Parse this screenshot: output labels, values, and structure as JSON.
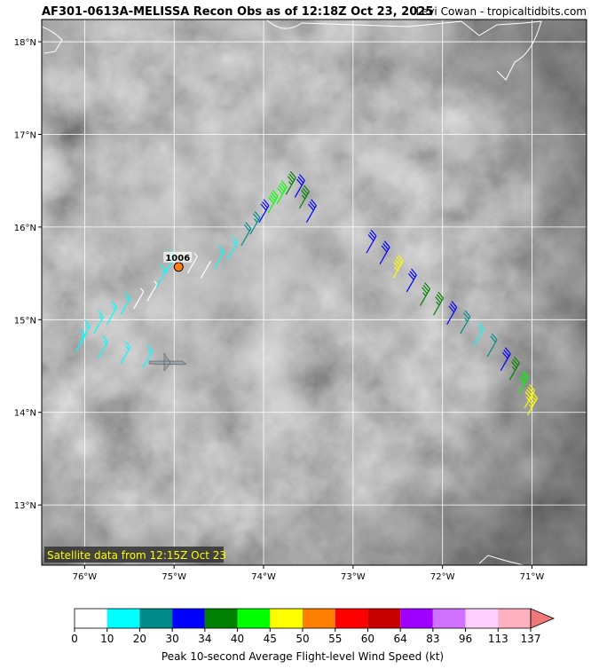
{
  "title": "AF301-0613A-MELISSA Recon Obs as of 12:18Z Oct 23, 2025",
  "credit": "Levi Cowan - tropicaltidbits.com",
  "satellite_note": "Satellite data from 12:15Z Oct 23",
  "map": {
    "xlim": [
      -76.48,
      -70.39
    ],
    "ylim": [
      12.35,
      18.24
    ],
    "xticks": [
      {
        "value": -76,
        "label": "76°W"
      },
      {
        "value": -75,
        "label": "75°W"
      },
      {
        "value": -74,
        "label": "74°W"
      },
      {
        "value": -73,
        "label": "73°W"
      },
      {
        "value": -72,
        "label": "72°W"
      },
      {
        "value": -71,
        "label": "71°W"
      }
    ],
    "yticks": [
      {
        "value": 13,
        "label": "13°N"
      },
      {
        "value": 14,
        "label": "14°N"
      },
      {
        "value": 15,
        "label": "15°N"
      },
      {
        "value": 16,
        "label": "16°N"
      },
      {
        "value": 17,
        "label": "17°N"
      },
      {
        "value": 18,
        "label": "18°N"
      }
    ],
    "grid": true
  },
  "center": {
    "lon": -74.95,
    "lat": 15.57,
    "pressure": 1006
  },
  "observations": [
    {
      "lon": -75.35,
      "lat": 14.48,
      "wind_kt": 18
    },
    {
      "lon": -75.6,
      "lat": 14.52,
      "wind_kt": 17
    },
    {
      "lon": -75.85,
      "lat": 14.58,
      "wind_kt": 16
    },
    {
      "lon": -76.1,
      "lat": 14.65,
      "wind_kt": 15
    },
    {
      "lon": -76.05,
      "lat": 14.75,
      "wind_kt": 15
    },
    {
      "lon": -75.9,
      "lat": 14.85,
      "wind_kt": 16
    },
    {
      "lon": -75.75,
      "lat": 14.95,
      "wind_kt": 17
    },
    {
      "lon": -75.6,
      "lat": 15.05,
      "wind_kt": 15
    },
    {
      "lon": -75.45,
      "lat": 15.12,
      "wind_kt": 8
    },
    {
      "lon": -75.3,
      "lat": 15.2,
      "wind_kt": 6
    },
    {
      "lon": -75.2,
      "lat": 15.35,
      "wind_kt": 15
    },
    {
      "lon": -75.1,
      "lat": 15.5,
      "wind_kt": 18
    },
    {
      "lon": -74.85,
      "lat": 15.5,
      "wind_kt": 5
    },
    {
      "lon": -74.7,
      "lat": 15.45,
      "wind_kt": 4
    },
    {
      "lon": -74.55,
      "lat": 15.55,
      "wind_kt": 16
    },
    {
      "lon": -74.4,
      "lat": 15.65,
      "wind_kt": 18
    },
    {
      "lon": -74.25,
      "lat": 15.8,
      "wind_kt": 22
    },
    {
      "lon": -74.15,
      "lat": 15.92,
      "wind_kt": 28
    },
    {
      "lon": -74.05,
      "lat": 16.05,
      "wind_kt": 32
    },
    {
      "lon": -73.95,
      "lat": 16.15,
      "wind_kt": 42
    },
    {
      "lon": -73.85,
      "lat": 16.25,
      "wind_kt": 44
    },
    {
      "lon": -73.75,
      "lat": 16.35,
      "wind_kt": 38
    },
    {
      "lon": -73.65,
      "lat": 16.32,
      "wind_kt": 32
    },
    {
      "lon": -73.6,
      "lat": 16.2,
      "wind_kt": 36
    },
    {
      "lon": -73.52,
      "lat": 16.05,
      "wind_kt": 31
    },
    {
      "lon": -72.85,
      "lat": 15.72,
      "wind_kt": 31
    },
    {
      "lon": -72.7,
      "lat": 15.6,
      "wind_kt": 30
    },
    {
      "lon": -72.55,
      "lat": 15.45,
      "wind_kt": 47
    },
    {
      "lon": -72.4,
      "lat": 15.3,
      "wind_kt": 30
    },
    {
      "lon": -72.25,
      "lat": 15.15,
      "wind_kt": 38
    },
    {
      "lon": -72.1,
      "lat": 15.05,
      "wind_kt": 36
    },
    {
      "lon": -71.95,
      "lat": 14.95,
      "wind_kt": 32
    },
    {
      "lon": -71.8,
      "lat": 14.85,
      "wind_kt": 25
    },
    {
      "lon": -71.65,
      "lat": 14.72,
      "wind_kt": 18
    },
    {
      "lon": -71.5,
      "lat": 14.6,
      "wind_kt": 22
    },
    {
      "lon": -71.35,
      "lat": 14.45,
      "wind_kt": 32
    },
    {
      "lon": -71.25,
      "lat": 14.35,
      "wind_kt": 36
    },
    {
      "lon": -71.15,
      "lat": 14.2,
      "wind_kt": 42
    },
    {
      "lon": -71.08,
      "lat": 14.05,
      "wind_kt": 48
    },
    {
      "lon": -71.05,
      "lat": 13.97,
      "wind_kt": 47
    }
  ],
  "colorbar": {
    "ticks": [
      0,
      10,
      20,
      30,
      34,
      40,
      45,
      50,
      55,
      60,
      64,
      83,
      96,
      113,
      137
    ],
    "colors": [
      "#ffffff",
      "#00ffff",
      "#008b8b",
      "#0000ff",
      "#008000",
      "#00ff00",
      "#ffff00",
      "#ff8000",
      "#ff0000",
      "#c80000",
      "#a000ff",
      "#d070ff",
      "#ffd0ff",
      "#ffb0c0"
    ],
    "extend_color": "#f07878",
    "label": "Peak 10-second Average Flight-level Wind Speed (kt)"
  }
}
